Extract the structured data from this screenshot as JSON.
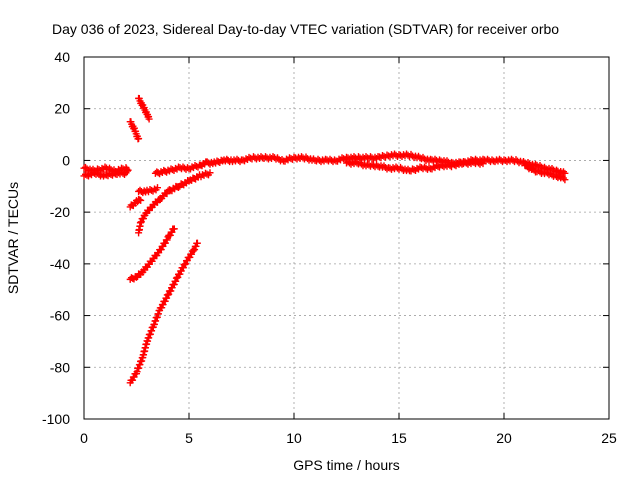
{
  "chart_data": {
    "type": "scatter",
    "title": "Day 036 of 2023, Sidereal Day-to-day VTEC variation (SDTVAR) for receiver orbo",
    "xlabel": "GPS time / hours",
    "ylabel": "SDTVAR / TECUs",
    "xlim": [
      0,
      25
    ],
    "ylim": [
      -100,
      40
    ],
    "xticks": [
      0,
      5,
      10,
      15,
      20,
      25
    ],
    "yticks": [
      -100,
      -80,
      -60,
      -40,
      -20,
      0,
      20,
      40
    ],
    "grid": true,
    "marker": "plus",
    "series": [
      {
        "name": "SDTVAR",
        "color": "#ff0000",
        "segments": [
          {
            "x": [
              0.0,
              0.5,
              1.0,
              1.5,
              2.0,
              2.1
            ],
            "y": [
              -3,
              -4,
              -3,
              -4,
              -3,
              -4
            ]
          },
          {
            "x": [
              0.0,
              0.5,
              1.0,
              1.5,
              2.0
            ],
            "y": [
              -6,
              -5,
              -6,
              -5,
              -5
            ]
          },
          {
            "x": [
              2.2,
              2.4,
              2.6
            ],
            "y": [
              15,
              12,
              8
            ]
          },
          {
            "x": [
              2.6,
              2.8,
              3.0,
              3.1
            ],
            "y": [
              24,
              21,
              18,
              16
            ]
          },
          {
            "x": [
              2.2,
              2.5,
              2.7
            ],
            "y": [
              -18,
              -16,
              -15
            ]
          },
          {
            "x": [
              2.6,
              3.0,
              3.5
            ],
            "y": [
              -12,
              -12,
              -11
            ]
          },
          {
            "x": [
              2.6,
              2.7,
              2.9,
              3.2,
              3.6,
              4.0,
              4.5,
              5.0,
              5.5,
              6.0
            ],
            "y": [
              -28,
              -24,
              -21,
              -18,
              -15,
              -12,
              -10,
              -8,
              -6,
              -5
            ]
          },
          {
            "x": [
              2.2,
              2.5,
              2.8,
              3.2,
              3.6,
              4.0,
              4.3
            ],
            "y": [
              -46,
              -45,
              -43,
              -39,
              -35,
              -30,
              -26
            ]
          },
          {
            "x": [
              2.2,
              2.5,
              2.8,
              3.0,
              3.3,
              3.6,
              4.0,
              4.4,
              4.8,
              5.2,
              5.4
            ],
            "y": [
              -86,
              -82,
              -76,
              -70,
              -64,
              -58,
              -52,
              -46,
              -40,
              -35,
              -32
            ]
          },
          {
            "x": [
              3.4,
              4.0,
              4.5,
              5.0,
              5.5,
              5.8,
              6.2,
              6.6,
              7.0,
              7.5,
              8.0,
              8.5,
              9.0,
              9.5,
              10.0,
              10.5,
              11.0,
              11.5,
              12.0,
              12.5,
              13.0,
              13.5,
              14.0,
              14.5,
              15.0,
              15.5,
              16.0,
              16.5,
              17.0,
              17.5,
              18.0,
              18.5,
              19.0,
              19.5,
              20.0,
              20.5,
              21.0,
              21.5,
              22.0,
              22.5,
              22.9
            ],
            "y": [
              -5,
              -4,
              -3,
              -3,
              -2,
              -1,
              -1,
              0,
              0,
              0,
              1,
              1,
              1,
              0,
              1,
              1,
              0,
              0,
              0,
              1,
              1,
              1,
              1,
              2,
              2,
              2,
              1,
              0,
              0,
              -1,
              -1,
              0,
              0,
              0,
              0,
              0,
              -1,
              -2,
              -3,
              -4,
              -5
            ]
          },
          {
            "x": [
              12.5,
              13.0,
              13.5,
              14.0,
              14.5,
              15.0,
              15.5,
              16.0,
              16.5,
              17.0,
              17.5,
              18.0,
              18.5,
              19.0
            ],
            "y": [
              -1,
              -1,
              -2,
              -2,
              -3,
              -3,
              -4,
              -3,
              -3,
              -2,
              -2,
              -1,
              -1,
              -1
            ]
          },
          {
            "x": [
              21.0,
              21.5,
              22.0,
              22.5,
              22.9
            ],
            "y": [
              -2,
              -4,
              -5,
              -6,
              -7
            ]
          }
        ]
      }
    ]
  }
}
